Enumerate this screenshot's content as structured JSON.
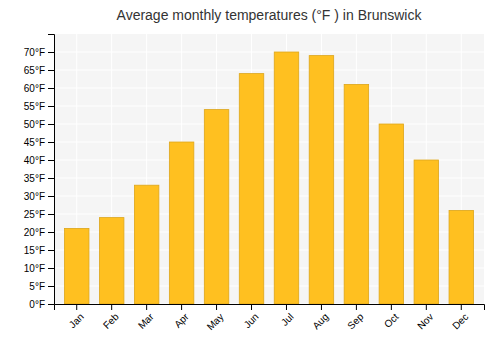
{
  "chart_data": {
    "type": "bar",
    "title": "Average monthly temperatures (°F ) in Brunswick",
    "categories": [
      "Jan",
      "Feb",
      "Mar",
      "Apr",
      "May",
      "Jun",
      "Jul",
      "Aug",
      "Sep",
      "Oct",
      "Nov",
      "Dec"
    ],
    "values": [
      21,
      24,
      33,
      45,
      54,
      64,
      70,
      69,
      61,
      50,
      40,
      26
    ],
    "color": "#FFC020",
    "ylim": [
      0,
      75
    ],
    "yticks": [
      {
        "value": 0,
        "label": "0°F"
      },
      {
        "value": 5,
        "label": "5°F"
      },
      {
        "value": 10,
        "label": "10°F"
      },
      {
        "value": 15,
        "label": "15°F"
      },
      {
        "value": 20,
        "label": "20°F"
      },
      {
        "value": 25,
        "label": "25°F"
      },
      {
        "value": 30,
        "label": "30°F"
      },
      {
        "value": 35,
        "label": "35°F"
      },
      {
        "value": 40,
        "label": "40°F"
      },
      {
        "value": 45,
        "label": "45°F"
      },
      {
        "value": 50,
        "label": "50°F"
      },
      {
        "value": 55,
        "label": "55°F"
      },
      {
        "value": 60,
        "label": "60°F"
      },
      {
        "value": 65,
        "label": "65°F"
      },
      {
        "value": 70,
        "label": "70°F"
      }
    ],
    "grid": true
  }
}
